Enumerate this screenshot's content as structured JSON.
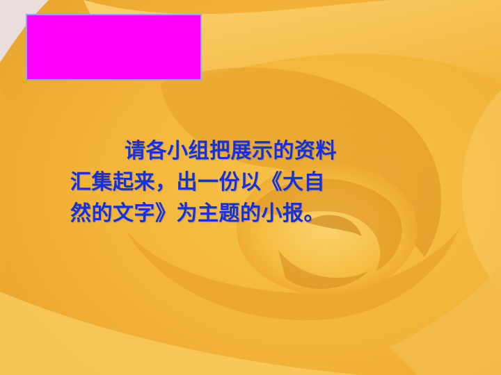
{
  "slide": {
    "colors": {
      "background_base": "#f2b93f",
      "box_fill": "#ff00ff",
      "box_border": "#8fa8f0",
      "text": "#1230e6"
    },
    "text_lines": [
      "请各小组把展示的资料",
      "汇集起来，出一份以《大自",
      "然的文字》为主题的小报。"
    ]
  }
}
